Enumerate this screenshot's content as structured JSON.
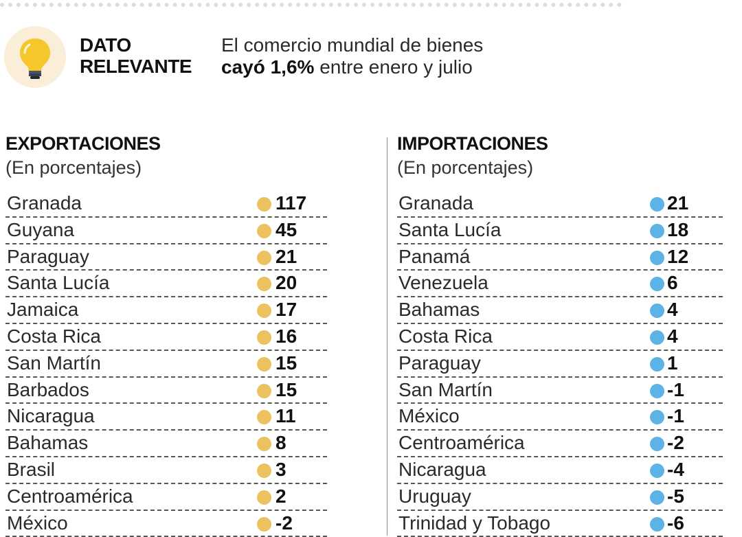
{
  "header": {
    "label_line1": "DATO",
    "label_line2": "RELEVANTE",
    "text_line1": "El comercio mundial de bienes",
    "text_line2_bold": "cayó 1,6%",
    "text_line2_rest": " entre enero y julio"
  },
  "colors": {
    "exports_dot": "#ecc15f",
    "imports_dot": "#5db3e6",
    "bulb": "#f5c72c",
    "bulb_bg": "#fbeed9"
  },
  "chart_data": [
    {
      "type": "table",
      "title": "EXPORTACIONES",
      "subtitle": "(En porcentajes)",
      "rows": [
        {
          "name": "Granada",
          "value": "117"
        },
        {
          "name": "Guyana",
          "value": "45"
        },
        {
          "name": "Paraguay",
          "value": "21"
        },
        {
          "name": "Santa Lucía",
          "value": "20"
        },
        {
          "name": "Jamaica",
          "value": "17"
        },
        {
          "name": "Costa Rica",
          "value": "16"
        },
        {
          "name": "San Martín",
          "value": "15"
        },
        {
          "name": "Barbados",
          "value": "15"
        },
        {
          "name": "Nicaragua",
          "value": "11"
        },
        {
          "name": "Bahamas",
          "value": "8"
        },
        {
          "name": "Brasil",
          "value": "3"
        },
        {
          "name": "Centroamérica",
          "value": "2"
        },
        {
          "name": "México",
          "value": "-2"
        }
      ]
    },
    {
      "type": "table",
      "title": "IMPORTACIONES",
      "subtitle": "(En porcentajes)",
      "rows": [
        {
          "name": "Granada",
          "value": "21"
        },
        {
          "name": "Santa Lucía",
          "value": "18"
        },
        {
          "name": "Panamá",
          "value": "12"
        },
        {
          "name": "Venezuela",
          "value": "6"
        },
        {
          "name": "Bahamas",
          "value": "4"
        },
        {
          "name": "Costa Rica",
          "value": "4"
        },
        {
          "name": "Paraguay",
          "value": "1"
        },
        {
          "name": "San Martín",
          "value": "-1"
        },
        {
          "name": "México",
          "value": "-1"
        },
        {
          "name": "Centroamérica",
          "value": "-2"
        },
        {
          "name": "Nicaragua",
          "value": "-4"
        },
        {
          "name": "Uruguay",
          "value": "-5"
        },
        {
          "name": "Trinidad y Tobago",
          "value": "-6"
        }
      ]
    }
  ]
}
